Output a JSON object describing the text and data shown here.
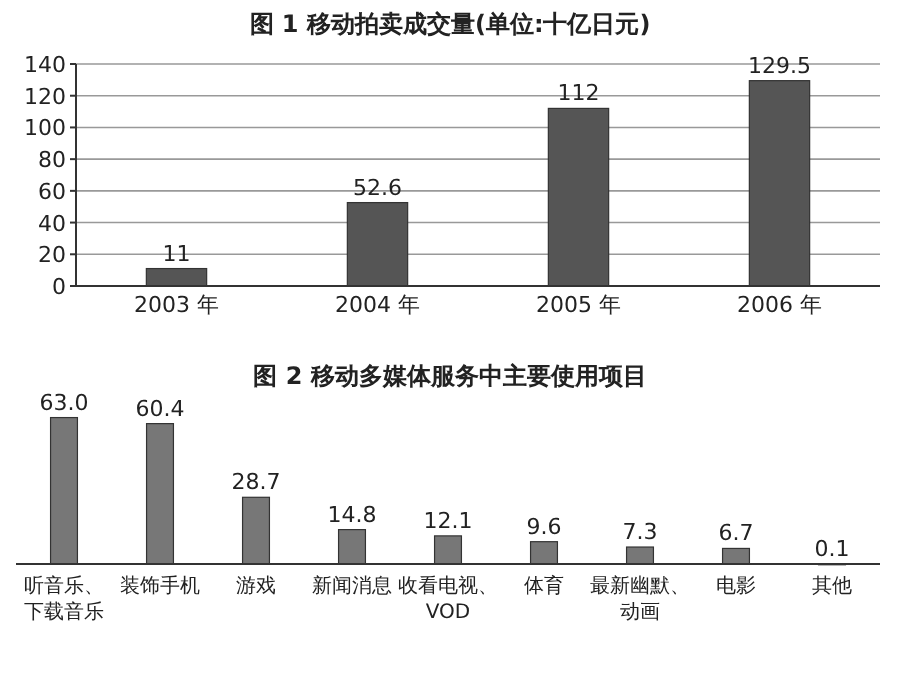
{
  "chart_data": [
    {
      "type": "bar",
      "title": "图 1 移动拍卖成交量(单位:十亿日元)",
      "categories": [
        "2003 年",
        "2004 年",
        "2005 年",
        "2006 年"
      ],
      "values": [
        11,
        52.6,
        112,
        129.5
      ],
      "color": "#555555",
      "ylim": [
        0,
        140
      ],
      "yticks": [
        0,
        20,
        40,
        60,
        80,
        100,
        120,
        140
      ],
      "grid": "y",
      "data_labels": true
    },
    {
      "type": "bar",
      "title": "图 2 移动多媒体服务中主要使用项目",
      "categories": [
        "听音乐、下载音乐",
        "装饰手机",
        "游戏",
        "新闻消息",
        "收看电视、VOD",
        "体育",
        "最新幽默、动画",
        "电影",
        "其他"
      ],
      "values": [
        63.0,
        60.4,
        28.7,
        14.8,
        12.1,
        9.6,
        7.3,
        6.7,
        0.1
      ],
      "value_labels": [
        "63.0",
        "60.4",
        "28.7",
        "14.8",
        "12.1",
        "9.6",
        "7.3",
        "6.7",
        "0.1"
      ],
      "color": "#777777"
    }
  ]
}
